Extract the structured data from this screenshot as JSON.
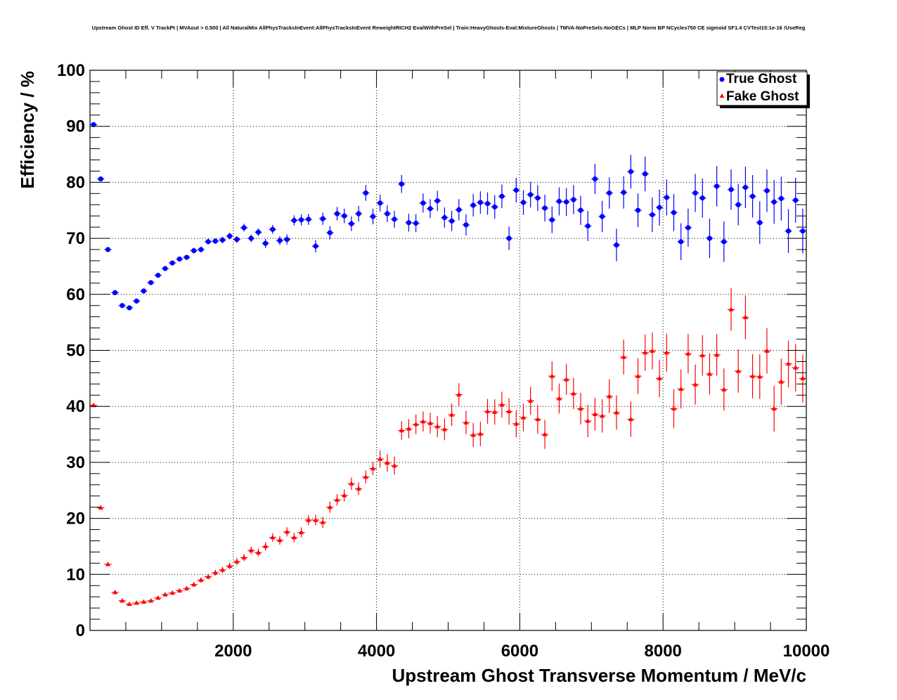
{
  "chart_data": {
    "type": "scatter",
    "title": "Upstream Ghost ID Eff. V TrackPt | MVAout > 0.500 | All NaturalMix AllPhysTracksInEvent:AllPhysTracksInEvent ReweightRICH2 EvalWithPreSel | Train:HeavyGhosts-Eval:MixtureGhosts | TMVA-NoPreSels-NoGECs | MLP Norm BP NCycles750 CE sigmoid SF1.4 CVTest15:1e-16 !UseReg",
    "xlabel": "Upstream Ghost Transverse Momentum / MeV/c",
    "ylabel": "Efficiency / %",
    "xlim": [
      0,
      10000
    ],
    "ylim": [
      0,
      100
    ],
    "x_ticks": [
      2000,
      4000,
      6000,
      8000,
      10000
    ],
    "y_ticks": [
      0,
      10,
      20,
      30,
      40,
      50,
      60,
      70,
      80,
      90,
      100
    ],
    "grid": true,
    "legend_position": "top-right",
    "series": [
      {
        "name": "True Ghost",
        "color": "#0000ff",
        "marker": "circle",
        "x": [
          50,
          150,
          250,
          350,
          450,
          550,
          650,
          750,
          850,
          950,
          1050,
          1150,
          1250,
          1350,
          1450,
          1550,
          1650,
          1750,
          1850,
          1950,
          2050,
          2150,
          2250,
          2350,
          2450,
          2550,
          2650,
          2750,
          2850,
          2950,
          3050,
          3150,
          3250,
          3350,
          3450,
          3550,
          3650,
          3750,
          3850,
          3950,
          4050,
          4150,
          4250,
          4350,
          4450,
          4550,
          4650,
          4750,
          4850,
          4950,
          5050,
          5150,
          5250,
          5350,
          5450,
          5550,
          5650,
          5750,
          5850,
          5950,
          6050,
          6150,
          6250,
          6350,
          6450,
          6550,
          6650,
          6750,
          6850,
          6950,
          7050,
          7150,
          7250,
          7350,
          7450,
          7550,
          7650,
          7750,
          7850,
          7950,
          8050,
          8150,
          8250,
          8350,
          8450,
          8550,
          8650,
          8750,
          8850,
          8950,
          9050,
          9150,
          9250,
          9350,
          9450,
          9550,
          9650,
          9750,
          9850,
          9950
        ],
        "y": [
          90.3,
          80.6,
          68.0,
          60.3,
          58.0,
          57.6,
          58.8,
          60.6,
          62.1,
          63.4,
          64.6,
          65.6,
          66.3,
          66.6,
          67.8,
          68.0,
          69.4,
          69.5,
          69.7,
          70.4,
          69.8,
          71.9,
          70.0,
          71.1,
          69.1,
          71.6,
          69.6,
          69.8,
          73.2,
          73.3,
          73.4,
          68.6,
          73.5,
          71.0,
          74.4,
          74.0,
          72.6,
          74.4,
          78.1,
          73.9,
          76.3,
          74.4,
          73.4,
          79.7,
          72.8,
          72.7,
          76.3,
          75.3,
          76.7,
          73.7,
          73.1,
          75.1,
          72.4,
          75.9,
          76.4,
          76.2,
          75.6,
          77.5,
          70.0,
          78.6,
          76.4,
          77.8,
          77.2,
          75.4,
          73.3,
          76.6,
          76.5,
          76.9,
          75.0,
          72.2,
          80.6,
          73.9,
          78.1,
          68.8,
          78.2,
          81.9,
          75.0,
          81.5,
          74.2,
          75.5,
          77.3,
          74.6,
          69.4,
          71.9,
          78.1,
          77.2,
          70.0,
          79.3,
          69.4,
          78.7,
          76.0,
          79.1,
          77.5,
          72.8,
          78.5,
          76.5,
          77.1,
          71.3,
          76.8,
          71.3
        ],
        "yerr": [
          0.3,
          0.4,
          0.4,
          0.4,
          0.4,
          0.4,
          0.4,
          0.4,
          0.4,
          0.4,
          0.4,
          0.4,
          0.4,
          0.4,
          0.5,
          0.5,
          0.5,
          0.5,
          0.6,
          0.6,
          0.6,
          0.7,
          0.7,
          0.7,
          0.8,
          0.8,
          0.8,
          0.9,
          0.9,
          1.0,
          1.0,
          1.1,
          1.1,
          1.2,
          1.2,
          1.3,
          1.3,
          1.4,
          1.4,
          1.4,
          1.5,
          1.5,
          1.5,
          1.6,
          1.6,
          1.6,
          1.7,
          1.7,
          1.8,
          1.8,
          1.8,
          1.9,
          1.9,
          2.0,
          2.0,
          2.0,
          2.1,
          2.1,
          2.1,
          2.2,
          2.2,
          2.3,
          2.3,
          2.4,
          2.4,
          2.5,
          2.5,
          2.6,
          2.6,
          2.7,
          2.7,
          2.8,
          2.8,
          2.9,
          2.9,
          3.0,
          3.0,
          3.1,
          3.1,
          3.2,
          3.2,
          3.3,
          3.3,
          3.4,
          3.4,
          3.5,
          3.5,
          3.6,
          3.6,
          3.6,
          3.7,
          3.7,
          3.8,
          3.8,
          3.8,
          3.9,
          3.9,
          3.9,
          4.0,
          4.0
        ]
      },
      {
        "name": "Fake Ghost",
        "color": "#ff0000",
        "marker": "triangle",
        "x": [
          50,
          150,
          250,
          350,
          450,
          550,
          650,
          750,
          850,
          950,
          1050,
          1150,
          1250,
          1350,
          1450,
          1550,
          1650,
          1750,
          1850,
          1950,
          2050,
          2150,
          2250,
          2350,
          2450,
          2550,
          2650,
          2750,
          2850,
          2950,
          3050,
          3150,
          3250,
          3350,
          3450,
          3550,
          3650,
          3750,
          3850,
          3950,
          4050,
          4150,
          4250,
          4350,
          4450,
          4550,
          4650,
          4750,
          4850,
          4950,
          5050,
          5150,
          5250,
          5350,
          5450,
          5550,
          5650,
          5750,
          5850,
          5950,
          6050,
          6150,
          6250,
          6350,
          6450,
          6550,
          6650,
          6750,
          6850,
          6950,
          7050,
          7150,
          7250,
          7350,
          7450,
          7550,
          7650,
          7750,
          7850,
          7950,
          8050,
          8150,
          8250,
          8350,
          8450,
          8550,
          8650,
          8750,
          8850,
          8950,
          9050,
          9150,
          9250,
          9350,
          9450,
          9550,
          9650,
          9750,
          9850,
          9950
        ],
        "y": [
          40.2,
          21.9,
          11.8,
          6.8,
          5.3,
          4.7,
          4.9,
          5.1,
          5.3,
          5.8,
          6.4,
          6.7,
          7.1,
          7.5,
          8.2,
          9.0,
          9.6,
          10.3,
          10.8,
          11.5,
          12.3,
          13.0,
          14.3,
          13.9,
          15.0,
          16.6,
          16.1,
          17.6,
          16.6,
          17.5,
          19.7,
          19.7,
          19.3,
          22.0,
          23.3,
          24.1,
          26.2,
          25.3,
          27.4,
          28.9,
          30.6,
          29.9,
          29.4,
          35.7,
          36.0,
          36.8,
          37.3,
          37.0,
          36.4,
          35.9,
          38.5,
          42.1,
          37.1,
          34.9,
          35.1,
          39.1,
          39.0,
          40.3,
          39.1,
          36.9,
          38.0,
          41.0,
          37.7,
          35.0,
          45.4,
          41.4,
          44.8,
          42.3,
          39.6,
          37.4,
          38.6,
          38.3,
          41.8,
          38.9,
          48.8,
          37.7,
          45.4,
          49.6,
          49.9,
          45.0,
          49.6,
          39.6,
          43.1,
          49.4,
          43.9,
          49.1,
          45.8,
          49.2,
          43.0,
          57.3,
          46.3,
          55.9,
          45.4,
          45.3,
          49.9,
          39.6,
          44.4,
          47.6,
          46.9,
          45.0
        ]
      }
    ]
  },
  "legend": {
    "true_ghost_marker": "filled-circle",
    "fake_ghost_marker": "filled-triangle"
  }
}
